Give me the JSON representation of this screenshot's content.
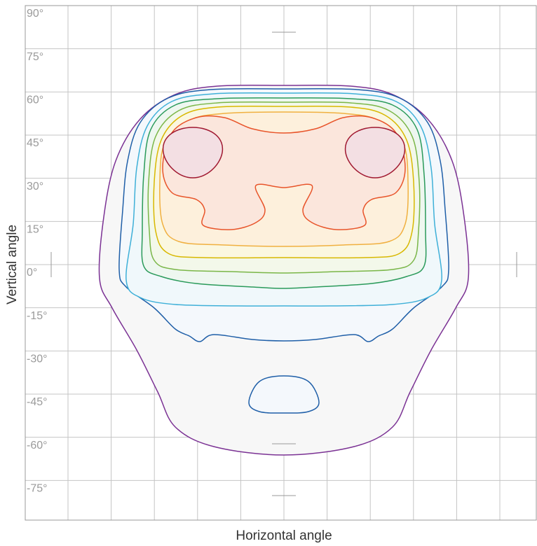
{
  "chart_data": {
    "type": "contour",
    "xlabel": "Horizontal angle",
    "ylabel": "Vertical angle",
    "ylim": [
      -90,
      90
    ],
    "yticks": [
      {
        "value": 90,
        "label": "90°"
      },
      {
        "value": 75,
        "label": "75°"
      },
      {
        "value": 60,
        "label": "60°"
      },
      {
        "value": 45,
        "label": "45°"
      },
      {
        "value": 30,
        "label": "30°"
      },
      {
        "value": 15,
        "label": "15°"
      },
      {
        "value": 0,
        "label": "0°"
      },
      {
        "value": -15,
        "label": "-15°"
      },
      {
        "value": -30,
        "label": "-30°"
      },
      {
        "value": -45,
        "label": "-45°"
      },
      {
        "value": -60,
        "label": "-60°"
      },
      {
        "value": -75,
        "label": "-75°"
      }
    ],
    "grid": true
  }
}
